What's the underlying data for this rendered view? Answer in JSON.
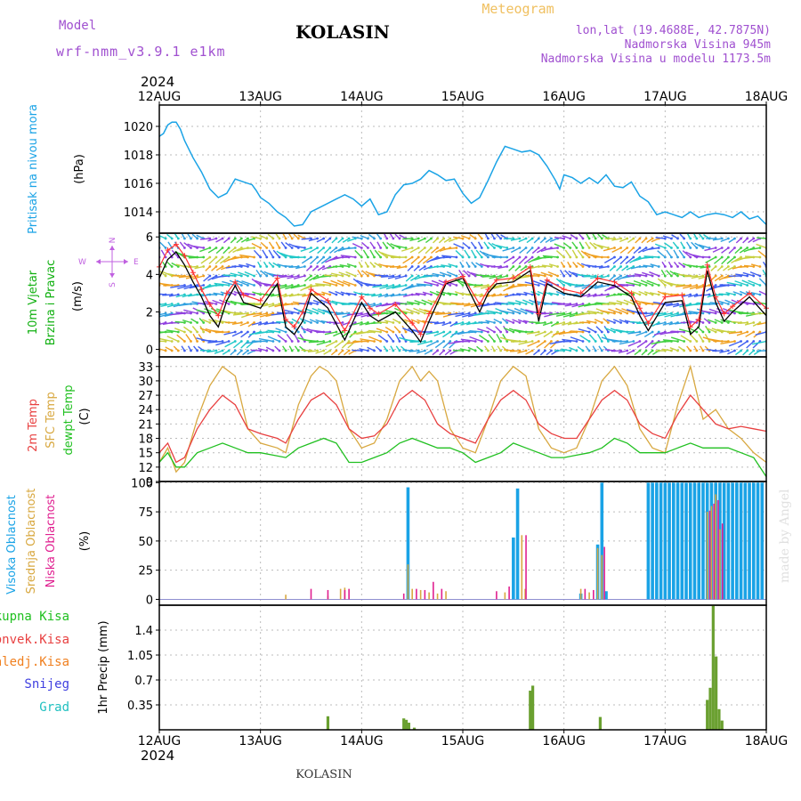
{
  "header": {
    "model_label": "Model",
    "model_name": "wrf-nmm_v3.9.1 e1km",
    "location": "KOLASIN",
    "product": "Meteogram",
    "coords": "lon,lat (19.4688E, 42.7875N)",
    "elevation": "Nadmorska Visina 945m",
    "model_elevation": "Nadmorska Visina u modelu 1173.5m",
    "watermark": "made by Angel",
    "footer": "KOLASIN",
    "year_top": "2024",
    "year_bottom": "2024"
  },
  "colors": {
    "pressure": "#1aa3e6",
    "wind_label": "#10b010",
    "wind_speed": "#000000",
    "wind_gust": "#ff3030",
    "compass": "#c060e0",
    "temp_2m": "#e84040",
    "temp_sfc": "#d8a840",
    "dewpoint": "#20c020",
    "cloud_high": "#1aa3e6",
    "cloud_mid": "#d8a840",
    "cloud_low": "#e02090",
    "precip_total": "#20c020",
    "precip_conv": "#e84040",
    "precip_strat": "#f08020",
    "snow": "#4040e0",
    "graupel": "#20c0c0",
    "title_purple": "#a050d0",
    "meteogram_orange": "#f0c060"
  },
  "chart_data": [
    {
      "type": "line",
      "panel": "pressure",
      "ylabel_1": "Pritisak na nivou mora",
      "ylabel_2": "(hPa)",
      "ylim": [
        1012.5,
        1021.5
      ],
      "yticks": [
        1014,
        1016,
        1018,
        1020
      ],
      "xlim": [
        0,
        144
      ],
      "xticks": [
        "12AUG",
        "13AUG",
        "14AUG",
        "15AUG",
        "16AUG",
        "17AUG",
        "18AUG"
      ],
      "grid": true,
      "series": [
        {
          "x": [
            0,
            1,
            2,
            3,
            4,
            5,
            6,
            8,
            10,
            12,
            14,
            16,
            17,
            18,
            20,
            22,
            23,
            24,
            26,
            28,
            30,
            32,
            34,
            36,
            38,
            40,
            42,
            44,
            46,
            48,
            50,
            52,
            54,
            56,
            58,
            60,
            62,
            64,
            66,
            68,
            70,
            72,
            74,
            76,
            78,
            80,
            82,
            84,
            86,
            88,
            90,
            92,
            94,
            95,
            96,
            98,
            100,
            102,
            104,
            106,
            108,
            110,
            112,
            114,
            116,
            118,
            120,
            122,
            124,
            126,
            128,
            130,
            132,
            134,
            136,
            138,
            140,
            142,
            144
          ],
          "values": [
            1019.3,
            1019.5,
            1020.1,
            1020.3,
            1020.3,
            1019.8,
            1019.0,
            1017.8,
            1016.8,
            1015.6,
            1015.0,
            1015.3,
            1015.8,
            1016.3,
            1016.1,
            1015.9,
            1015.5,
            1015.0,
            1014.6,
            1014.0,
            1013.6,
            1013.0,
            1013.1,
            1014.0,
            1014.3,
            1014.6,
            1014.9,
            1015.2,
            1014.9,
            1014.4,
            1014.9,
            1013.8,
            1014.0,
            1015.2,
            1015.9,
            1016.0,
            1016.3,
            1016.9,
            1016.6,
            1016.2,
            1016.3,
            1015.3,
            1014.6,
            1015.0,
            1016.2,
            1017.5,
            1018.6,
            1018.4,
            1018.2,
            1018.3,
            1018.0,
            1017.2,
            1016.2,
            1015.6,
            1016.6,
            1016.4,
            1016.0,
            1016.4,
            1016.0,
            1016.6,
            1015.8,
            1015.7,
            1016.1,
            1015.1,
            1014.7,
            1013.8,
            1014.0,
            1013.8,
            1013.6,
            1014.0,
            1013.6,
            1013.8,
            1013.9,
            1013.8,
            1013.6,
            1014.0,
            1013.5,
            1013.7,
            1013.1
          ]
        }
      ]
    },
    {
      "type": "line",
      "panel": "wind",
      "ylabel_1": "10m Vjetar",
      "ylabel_2": "Brzina i Pravac",
      "ylabel_3": "(m/s)",
      "compass": {
        "n": "N",
        "s": "S",
        "w": "W",
        "e": "E"
      },
      "ylim": [
        -0.4,
        6.2
      ],
      "yticks": [
        0,
        2,
        4,
        6
      ],
      "xlim": [
        0,
        144
      ],
      "grid": true,
      "series": [
        {
          "name": "speed",
          "x": [
            0,
            2,
            4,
            6,
            8,
            10,
            12,
            14,
            16,
            18,
            20,
            24,
            28,
            30,
            32,
            34,
            36,
            40,
            44,
            48,
            50,
            52,
            56,
            60,
            62,
            64,
            68,
            72,
            76,
            78,
            80,
            84,
            88,
            90,
            92,
            96,
            100,
            104,
            108,
            112,
            114,
            116,
            120,
            124,
            126,
            128,
            130,
            132,
            134,
            136,
            140,
            144
          ],
          "values": [
            3.8,
            4.8,
            5.2,
            4.5,
            3.6,
            2.8,
            1.8,
            1.2,
            2.6,
            3.4,
            2.5,
            2.2,
            3.5,
            1.2,
            0.8,
            1.5,
            3.0,
            2.2,
            0.5,
            2.5,
            1.8,
            1.5,
            2.0,
            1.0,
            0.4,
            1.5,
            3.5,
            3.8,
            2.0,
            3.0,
            3.5,
            3.6,
            4.2,
            1.5,
            3.5,
            3.0,
            2.8,
            3.6,
            3.4,
            2.8,
            1.8,
            1.0,
            2.5,
            2.6,
            0.8,
            1.2,
            4.2,
            2.5,
            1.5,
            2.0,
            2.8,
            1.8
          ]
        },
        {
          "name": "gust",
          "x": [
            0,
            2,
            4,
            6,
            8,
            10,
            12,
            14,
            16,
            18,
            20,
            24,
            28,
            30,
            32,
            34,
            36,
            40,
            44,
            48,
            50,
            52,
            56,
            60,
            62,
            64,
            68,
            72,
            76,
            78,
            80,
            84,
            88,
            90,
            92,
            96,
            100,
            104,
            108,
            112,
            114,
            116,
            120,
            124,
            126,
            128,
            130,
            132,
            134,
            136,
            140,
            144
          ],
          "values": [
            4.4,
            5.3,
            5.6,
            5.0,
            4.1,
            3.2,
            2.4,
            1.8,
            3.0,
            3.6,
            2.9,
            2.6,
            3.8,
            1.6,
            1.2,
            2.0,
            3.2,
            2.6,
            1.0,
            2.8,
            2.2,
            1.9,
            2.4,
            1.4,
            0.8,
            1.9,
            3.6,
            3.9,
            2.4,
            3.2,
            3.7,
            3.8,
            4.4,
            1.9,
            3.7,
            3.2,
            3.0,
            3.8,
            3.6,
            3.0,
            2.2,
            1.4,
            2.8,
            2.9,
            1.2,
            1.6,
            4.5,
            2.8,
            1.9,
            2.3,
            3.0,
            2.2
          ]
        }
      ]
    },
    {
      "type": "line",
      "panel": "temperature",
      "ylabel_1": "2m Temp",
      "ylabel_2": "SFC Temp",
      "ylabel_3": "dewpt Temp",
      "ylabel_4": "(C)",
      "ylim": [
        9,
        35
      ],
      "yticks": [
        9,
        12,
        15,
        18,
        21,
        24,
        27,
        30,
        33
      ],
      "xlim": [
        0,
        144
      ],
      "grid": true,
      "series": [
        {
          "name": "2m",
          "x": [
            0,
            2,
            4,
            6,
            9,
            12,
            15,
            18,
            21,
            24,
            28,
            30,
            33,
            36,
            39,
            42,
            45,
            48,
            51,
            54,
            57,
            60,
            63,
            66,
            69,
            72,
            75,
            78,
            81,
            84,
            87,
            90,
            93,
            96,
            99,
            102,
            105,
            108,
            111,
            114,
            117,
            120,
            123,
            126,
            129,
            132,
            135,
            138,
            141,
            144
          ],
          "values": [
            15,
            17,
            13,
            14,
            20,
            24,
            27,
            25,
            20,
            19,
            18,
            17,
            22,
            26,
            27.5,
            25,
            20,
            18,
            18.5,
            21,
            26,
            28,
            26,
            21,
            19,
            18,
            17,
            22,
            26,
            28,
            26,
            21,
            19,
            18,
            18,
            22,
            26,
            28,
            26,
            21,
            19,
            18,
            23,
            27,
            24,
            21,
            20,
            20.5,
            20,
            19.5
          ]
        },
        {
          "name": "sfc",
          "x": [
            0,
            2,
            4,
            6,
            9,
            12,
            15,
            18,
            21,
            24,
            28,
            30,
            33,
            36,
            38,
            40,
            42,
            45,
            48,
            51,
            54,
            57,
            60,
            62,
            64,
            66,
            69,
            72,
            75,
            78,
            81,
            84,
            87,
            90,
            93,
            96,
            99,
            102,
            105,
            108,
            111,
            114,
            117,
            120,
            123,
            126,
            129,
            132,
            135,
            138,
            141,
            144
          ],
          "values": [
            13,
            16,
            11,
            13,
            22,
            29,
            33,
            31,
            20,
            17,
            16,
            15,
            25,
            31,
            33,
            32,
            30,
            20,
            16,
            17,
            22,
            30,
            33,
            30,
            32,
            30,
            20,
            16,
            15,
            22,
            30,
            33,
            31,
            20,
            16,
            15,
            16,
            22,
            30,
            33,
            29,
            20,
            16,
            15,
            25,
            33,
            22,
            24,
            20,
            18,
            15,
            13
          ]
        },
        {
          "name": "dewpoint",
          "x": [
            0,
            2,
            4,
            6,
            9,
            12,
            15,
            18,
            21,
            24,
            27,
            30,
            33,
            36,
            39,
            42,
            45,
            48,
            51,
            54,
            57,
            60,
            63,
            66,
            69,
            72,
            75,
            78,
            81,
            84,
            87,
            90,
            93,
            96,
            99,
            102,
            105,
            108,
            111,
            114,
            117,
            120,
            123,
            126,
            129,
            132,
            135,
            138,
            141,
            144
          ],
          "values": [
            13,
            15,
            12,
            12,
            15,
            16,
            17,
            16,
            15,
            15,
            14.5,
            14,
            16,
            17,
            18,
            17,
            13,
            13,
            14,
            15,
            17,
            18,
            17,
            16,
            16,
            15,
            13,
            14,
            15,
            17,
            16,
            15,
            14,
            14,
            14.5,
            15,
            16,
            18,
            17,
            15,
            15,
            15,
            16,
            17,
            16,
            16,
            16,
            15,
            14,
            10
          ]
        }
      ]
    },
    {
      "type": "bar",
      "panel": "cloud",
      "ylabel_1": "Visoka Oblacnost",
      "ylabel_2": "Srednja Oblacnost",
      "ylabel_3": "Niska Oblacnost",
      "ylabel_4": "(%)",
      "ylim": [
        -5,
        101
      ],
      "yticks": [
        0,
        25,
        50,
        75,
        100
      ],
      "xlim": [
        0,
        144
      ],
      "grid": true,
      "series": [
        {
          "name": "high",
          "x": [
            59,
            84,
            85,
            100,
            104,
            105,
            106,
            116,
            117,
            118,
            119,
            120,
            121,
            122,
            123,
            124,
            125,
            126,
            127,
            128,
            129,
            130,
            131,
            132,
            133,
            134,
            135,
            136,
            137,
            138,
            139,
            140,
            141,
            142,
            143
          ],
          "values": [
            96,
            53,
            95,
            5,
            47,
            100,
            7,
            100,
            100,
            100,
            100,
            100,
            100,
            100,
            100,
            100,
            100,
            100,
            100,
            100,
            100,
            100,
            100,
            100,
            100,
            100,
            100,
            100,
            100,
            100,
            100,
            100,
            100,
            100,
            100
          ]
        },
        {
          "name": "mid",
          "x": [
            30,
            40,
            43,
            44,
            59,
            60,
            62,
            64,
            66,
            68,
            82,
            86,
            86.8,
            100,
            102,
            104,
            105,
            130,
            131,
            132,
            133
          ],
          "values": [
            4,
            3,
            9,
            10,
            30,
            9,
            8,
            6,
            5,
            7,
            6,
            55,
            9,
            9,
            6,
            44,
            38,
            75,
            80,
            90,
            60
          ]
        },
        {
          "name": "low",
          "x": [
            36,
            40,
            44,
            45,
            58,
            61,
            63,
            65,
            67,
            80,
            83,
            87,
            101,
            103,
            105.6,
            130.6,
            131.6,
            132.6,
            133.6
          ],
          "values": [
            9,
            8,
            8,
            9,
            5,
            9,
            8,
            15,
            9,
            7,
            11,
            55,
            9,
            8,
            45,
            76,
            82,
            85,
            65
          ]
        }
      ]
    },
    {
      "type": "bar",
      "panel": "precip",
      "ylabel_1": "1hr Precip (mm)",
      "legend": [
        "Ukupna Kisa",
        "Konvek.Kisa",
        "Zaledj.Kisa",
        "Snijeg",
        "Grad"
      ],
      "ylim": [
        0,
        1.75
      ],
      "yticks": [
        0.35,
        0.7,
        1.05,
        1.4
      ],
      "ytick_labels": [
        "0.35",
        "0.7",
        "1.05",
        "1.4"
      ],
      "xlim": [
        0,
        144
      ],
      "xticks": [
        "12AUG",
        "13AUG",
        "14AUG",
        "15AUG",
        "16AUG",
        "17AUG",
        "18AUG"
      ],
      "grid": true,
      "series": [
        {
          "name": "total",
          "x": [
            40,
            58,
            58.6,
            59.2,
            60.5,
            88,
            88.6,
            104.6,
            130,
            130.7,
            131.4,
            132.1,
            132.8,
            133.5,
            134.2
          ],
          "values": [
            0.19,
            0.16,
            0.14,
            0.1,
            0.03,
            0.55,
            0.62,
            0.18,
            0.42,
            0.59,
            1.75,
            1.03,
            0.29,
            0.13,
            0.0
          ]
        }
      ]
    }
  ]
}
